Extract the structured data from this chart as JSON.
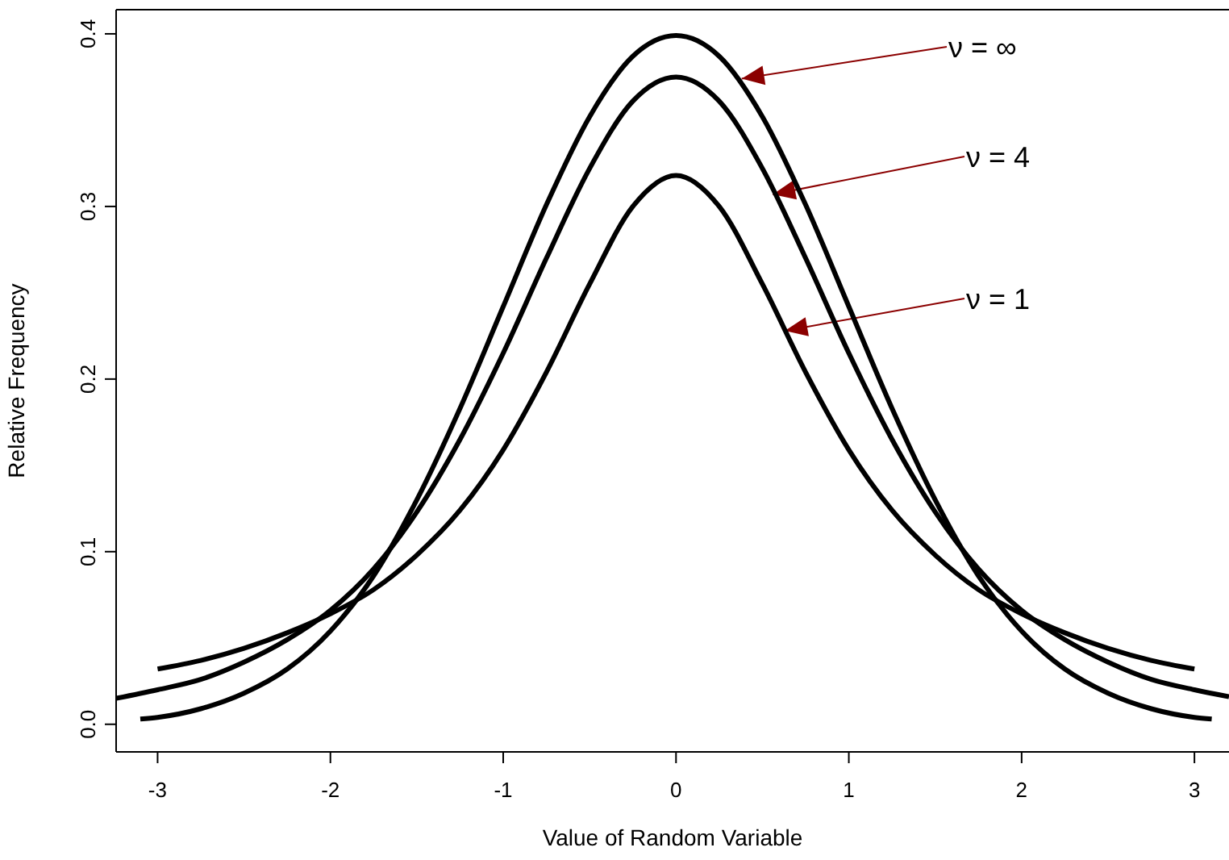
{
  "chart_data": {
    "type": "line",
    "xlabel": "Value of Random Variable",
    "ylabel": "Relative Frequency",
    "xlim": [
      -3.24,
      3.2
    ],
    "xticks": [
      -3,
      -2,
      -1,
      0,
      1,
      2,
      3
    ],
    "ylim": [
      -0.016,
      0.414
    ],
    "yticks": [
      {
        "value": 0,
        "label": "0.0"
      },
      {
        "value": 0.1,
        "label": "0.1"
      },
      {
        "value": 0.2,
        "label": "0.2"
      },
      {
        "value": 0.3,
        "label": "0.3"
      },
      {
        "value": 0.4,
        "label": "0.4"
      }
    ],
    "marker": "none",
    "line_style": "solid",
    "series": [
      {
        "color": "#000000",
        "x": [
          -3.1,
          -3,
          -2.75,
          -2.5,
          -2.25,
          -2,
          -1.75,
          -1.5,
          -1.25,
          -1,
          -0.75,
          -0.5,
          -0.25,
          0,
          0.25,
          0.5,
          0.75,
          1,
          1.25,
          1.5,
          1.75,
          2,
          2.25,
          2.5,
          2.75,
          3,
          3.1
        ],
        "values": [
          0.003,
          0.004,
          0.009,
          0.018,
          0.032,
          0.054,
          0.086,
          0.13,
          0.183,
          0.242,
          0.301,
          0.352,
          0.387,
          0.399,
          0.387,
          0.352,
          0.301,
          0.242,
          0.183,
          0.13,
          0.086,
          0.054,
          0.032,
          0.018,
          0.009,
          0.004,
          0.003
        ]
      },
      {
        "color": "#000000",
        "x": [
          -3.24,
          -3,
          -2.75,
          -2.5,
          -2.25,
          -2,
          -1.75,
          -1.5,
          -1.25,
          -1,
          -0.75,
          -0.5,
          -0.25,
          0,
          0.25,
          0.5,
          0.75,
          1,
          1.25,
          1.5,
          1.75,
          2,
          2.25,
          2.5,
          2.75,
          3,
          3.2
        ],
        "values": [
          0.015,
          0.02,
          0.026,
          0.036,
          0.049,
          0.066,
          0.09,
          0.123,
          0.165,
          0.215,
          0.27,
          0.322,
          0.361,
          0.375,
          0.361,
          0.322,
          0.27,
          0.215,
          0.165,
          0.123,
          0.09,
          0.066,
          0.049,
          0.036,
          0.026,
          0.02,
          0.016
        ]
      },
      {
        "color": "#000000",
        "x": [
          -3,
          -2.75,
          -2.5,
          -2.25,
          -2,
          -1.75,
          -1.5,
          -1.25,
          -1,
          -0.75,
          -0.5,
          -0.25,
          0,
          0.25,
          0.5,
          0.75,
          1,
          1.25,
          1.5,
          1.75,
          2,
          2.25,
          2.5,
          2.75,
          3
        ],
        "values": [
          0.032,
          0.037,
          0.044,
          0.053,
          0.064,
          0.078,
          0.098,
          0.124,
          0.159,
          0.204,
          0.255,
          0.3,
          0.318,
          0.3,
          0.255,
          0.204,
          0.159,
          0.124,
          0.098,
          0.078,
          0.064,
          0.053,
          0.044,
          0.037,
          0.032
        ]
      }
    ],
    "annotations": [
      {
        "text": "ν = ∞",
        "x": 0.38,
        "y": 0.374
      },
      {
        "text": "ν = 4",
        "x": 0.56,
        "y": 0.307
      },
      {
        "text": "ν = 1",
        "x": 0.63,
        "y": 0.228
      }
    ]
  }
}
